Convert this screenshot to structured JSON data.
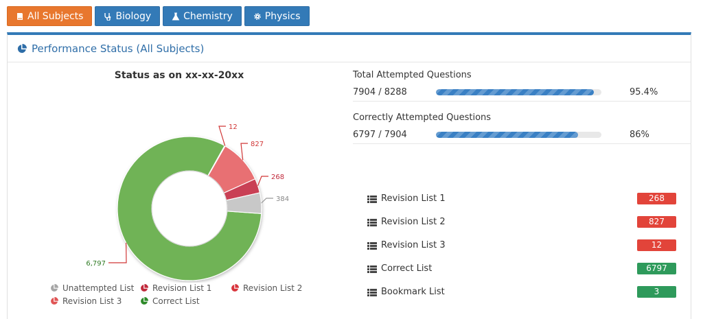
{
  "tabs": [
    {
      "label": "All Subjects",
      "icon": "book-icon",
      "active": true
    },
    {
      "label": "Biology",
      "icon": "stethoscope-icon",
      "active": false
    },
    {
      "label": "Chemistry",
      "icon": "flask-icon",
      "active": false
    },
    {
      "label": "Physics",
      "icon": "gear-icon",
      "active": false
    }
  ],
  "panel": {
    "title": "Performance Status (All Subjects)",
    "icon": "pie-chart-icon"
  },
  "chart_data": {
    "type": "pie",
    "title": "Status as on xx-xx-20xx",
    "categories": [
      "Correct List",
      "Revision List 3",
      "Revision List 2",
      "Revision List 1",
      "Unattempted List"
    ],
    "values": [
      6797,
      12,
      827,
      268,
      384
    ],
    "labels": [
      "6,797",
      "12",
      "827",
      "268",
      "384"
    ],
    "colors": [
      "#4e9a2f",
      "#e05555",
      "#e05555",
      "#c0283a",
      "#a6a6a6"
    ],
    "legend": [
      "Unattempted List",
      "Revision List 1",
      "Revision List 2",
      "Revision List 3",
      "Correct List"
    ],
    "legend_placement": "bottom"
  },
  "stats": [
    {
      "label": "Total Attempted Questions",
      "count": "7904 / 8288",
      "percent": "95.4%",
      "fraction": 0.954
    },
    {
      "label": "Correctly Attempted Questions",
      "count": "6797 / 7904",
      "percent": "86%",
      "fraction": 0.86
    }
  ],
  "lists": [
    {
      "label": "Revision List 1",
      "count": "268",
      "color": "#e2443a"
    },
    {
      "label": "Revision List 2",
      "count": "827",
      "color": "#e2443a"
    },
    {
      "label": "Revision List 3",
      "count": "12",
      "color": "#e2443a"
    },
    {
      "label": "Correct List",
      "count": "6797",
      "color": "#2e9a5b"
    },
    {
      "label": "Bookmark List",
      "count": "3",
      "color": "#2e9a5b"
    }
  ]
}
